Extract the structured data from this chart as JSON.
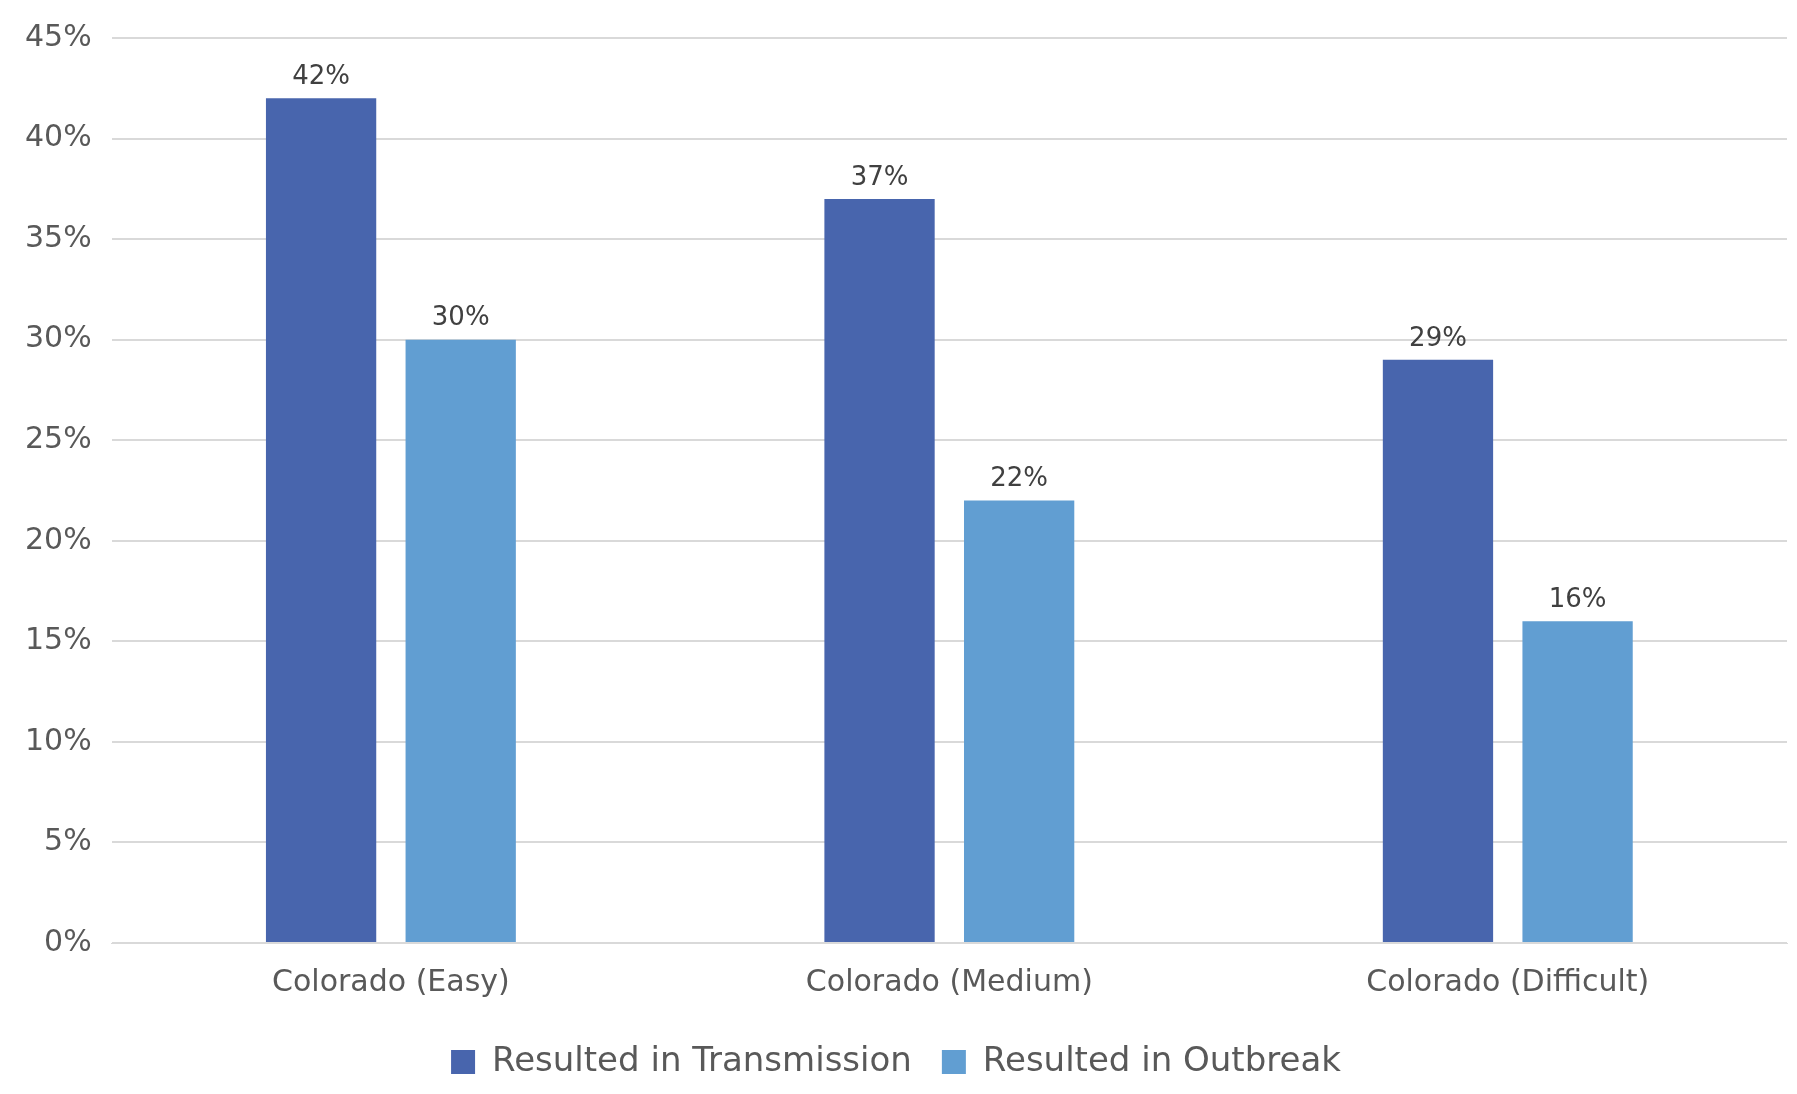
{
  "chart_data": {
    "type": "bar",
    "categories": [
      "Colorado (Easy)",
      "Colorado (Medium)",
      "Colorado (Difficult)"
    ],
    "series": [
      {
        "name": "Resulted in Transmission",
        "color": "#4865ad",
        "values": [
          42,
          37,
          29
        ],
        "value_labels": [
          "42%",
          "37%",
          "29%"
        ]
      },
      {
        "name": "Resulted in Outbreak",
        "color": "#619ed2",
        "values": [
          30,
          22,
          16
        ],
        "value_labels": [
          "30%",
          "22%",
          "16%"
        ]
      }
    ],
    "ylim": [
      0,
      45
    ],
    "yticks": [
      {
        "value": 0,
        "label": "0%"
      },
      {
        "value": 5,
        "label": "5%"
      },
      {
        "value": 10,
        "label": "10%"
      },
      {
        "value": 15,
        "label": "15%"
      },
      {
        "value": 20,
        "label": "20%"
      },
      {
        "value": 25,
        "label": "25%"
      },
      {
        "value": 30,
        "label": "30%"
      },
      {
        "value": 35,
        "label": "35%"
      },
      {
        "value": 40,
        "label": "40%"
      },
      {
        "value": 45,
        "label": "45%"
      }
    ],
    "grid": "y",
    "legend": "bottom"
  }
}
